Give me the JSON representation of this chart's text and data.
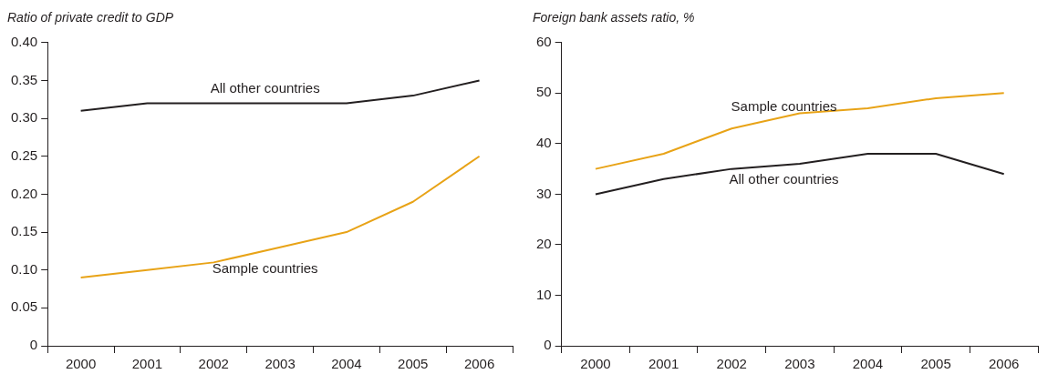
{
  "chart_data": [
    {
      "type": "line",
      "title": "Ratio of private credit to GDP",
      "categories": [
        "2000",
        "2001",
        "2002",
        "2003",
        "2004",
        "2005",
        "2006"
      ],
      "series": [
        {
          "name": "All other countries",
          "color": "#231f20",
          "values": [
            0.31,
            0.32,
            0.32,
            0.32,
            0.32,
            0.33,
            0.35
          ]
        },
        {
          "name": "Sample countries",
          "color": "#e8a317",
          "values": [
            0.09,
            0.1,
            0.11,
            0.13,
            0.15,
            0.19,
            0.25
          ]
        }
      ],
      "ylim": [
        0,
        0.4
      ],
      "yticks": [
        0,
        0.05,
        {
          "value": 0.1,
          "label": "0.10"
        },
        0.15,
        {
          "value": 0.2,
          "label": "0.20"
        },
        0.25,
        {
          "value": 0.3,
          "label": "0.30"
        },
        0.35,
        {
          "value": 0.4,
          "label": "0.40"
        }
      ],
      "grid": false,
      "legend": false,
      "marker": "none",
      "line_style": "solid"
    },
    {
      "type": "line",
      "title": "Foreign bank assets ratio, %",
      "categories": [
        "2000",
        "2001",
        "2002",
        "2003",
        "2004",
        "2005",
        "2006"
      ],
      "series": [
        {
          "name": "Sample countries",
          "color": "#e8a317",
          "values": [
            35,
            38,
            43,
            46,
            47,
            49,
            50
          ]
        },
        {
          "name": "All other countries",
          "color": "#231f20",
          "values": [
            30,
            33,
            35,
            36,
            38,
            38,
            34
          ]
        }
      ],
      "ylim": [
        0,
        60
      ],
      "yticks": [
        0,
        10,
        20,
        30,
        40,
        50,
        60
      ],
      "grid": false,
      "legend": false,
      "marker": "none",
      "line_style": "solid"
    }
  ]
}
